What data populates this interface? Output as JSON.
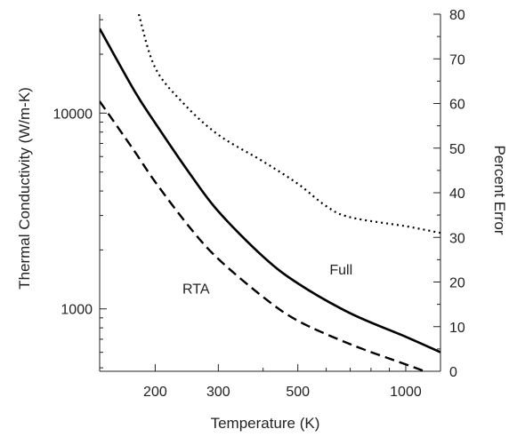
{
  "chart_data": {
    "type": "line",
    "title": "",
    "xlabel": "Temperature (K)",
    "ylabel": "Thermal Conductivity (W/m-K)",
    "y2label": "Percent Error",
    "xscale": "log",
    "yscale": "log",
    "xlim": [
      140,
      1250
    ],
    "ylim": [
      480,
      32000
    ],
    "y2lim": [
      0,
      80
    ],
    "x_ticks": [
      200,
      300,
      500,
      1000
    ],
    "x_tick_labels": [
      "200",
      "300",
      "500",
      "1000"
    ],
    "y_ticks": [
      1000,
      10000
    ],
    "y_tick_labels": [
      "1000",
      "10000"
    ],
    "y2_ticks": [
      0,
      10,
      20,
      30,
      40,
      50,
      60,
      70,
      80
    ],
    "y2_tick_labels": [
      "0",
      "10",
      "20",
      "30",
      "40",
      "50",
      "60",
      "70",
      "80"
    ],
    "grid": false,
    "series": [
      {
        "name": "Full",
        "axis": "left",
        "style": "solid",
        "x": [
          140,
          175,
          200,
          250,
          300,
          400,
          500,
          700,
          1000,
          1250
        ],
        "y": [
          27000,
          13000,
          8900,
          4900,
          3150,
          1850,
          1350,
          950,
          720,
          600
        ]
      },
      {
        "name": "RTA",
        "axis": "left",
        "style": "dashed",
        "x": [
          140,
          175,
          200,
          250,
          300,
          400,
          500,
          700,
          1000,
          1250
        ],
        "y": [
          11500,
          6400,
          4450,
          2600,
          1800,
          1150,
          870,
          660,
          520,
          450
        ]
      },
      {
        "name": "",
        "axis": "right",
        "style": "dotted",
        "x": [
          180,
          200,
          240,
          300,
          400,
          500,
          600,
          700,
          1000,
          1250
        ],
        "y": [
          80,
          68,
          60,
          53,
          47,
          42,
          37,
          34.5,
          32.5,
          31
        ]
      }
    ],
    "annotations": [
      {
        "text": "Full",
        "x": 660,
        "y": 1500
      },
      {
        "text": "RTA",
        "x": 260,
        "y": 1200
      }
    ]
  }
}
